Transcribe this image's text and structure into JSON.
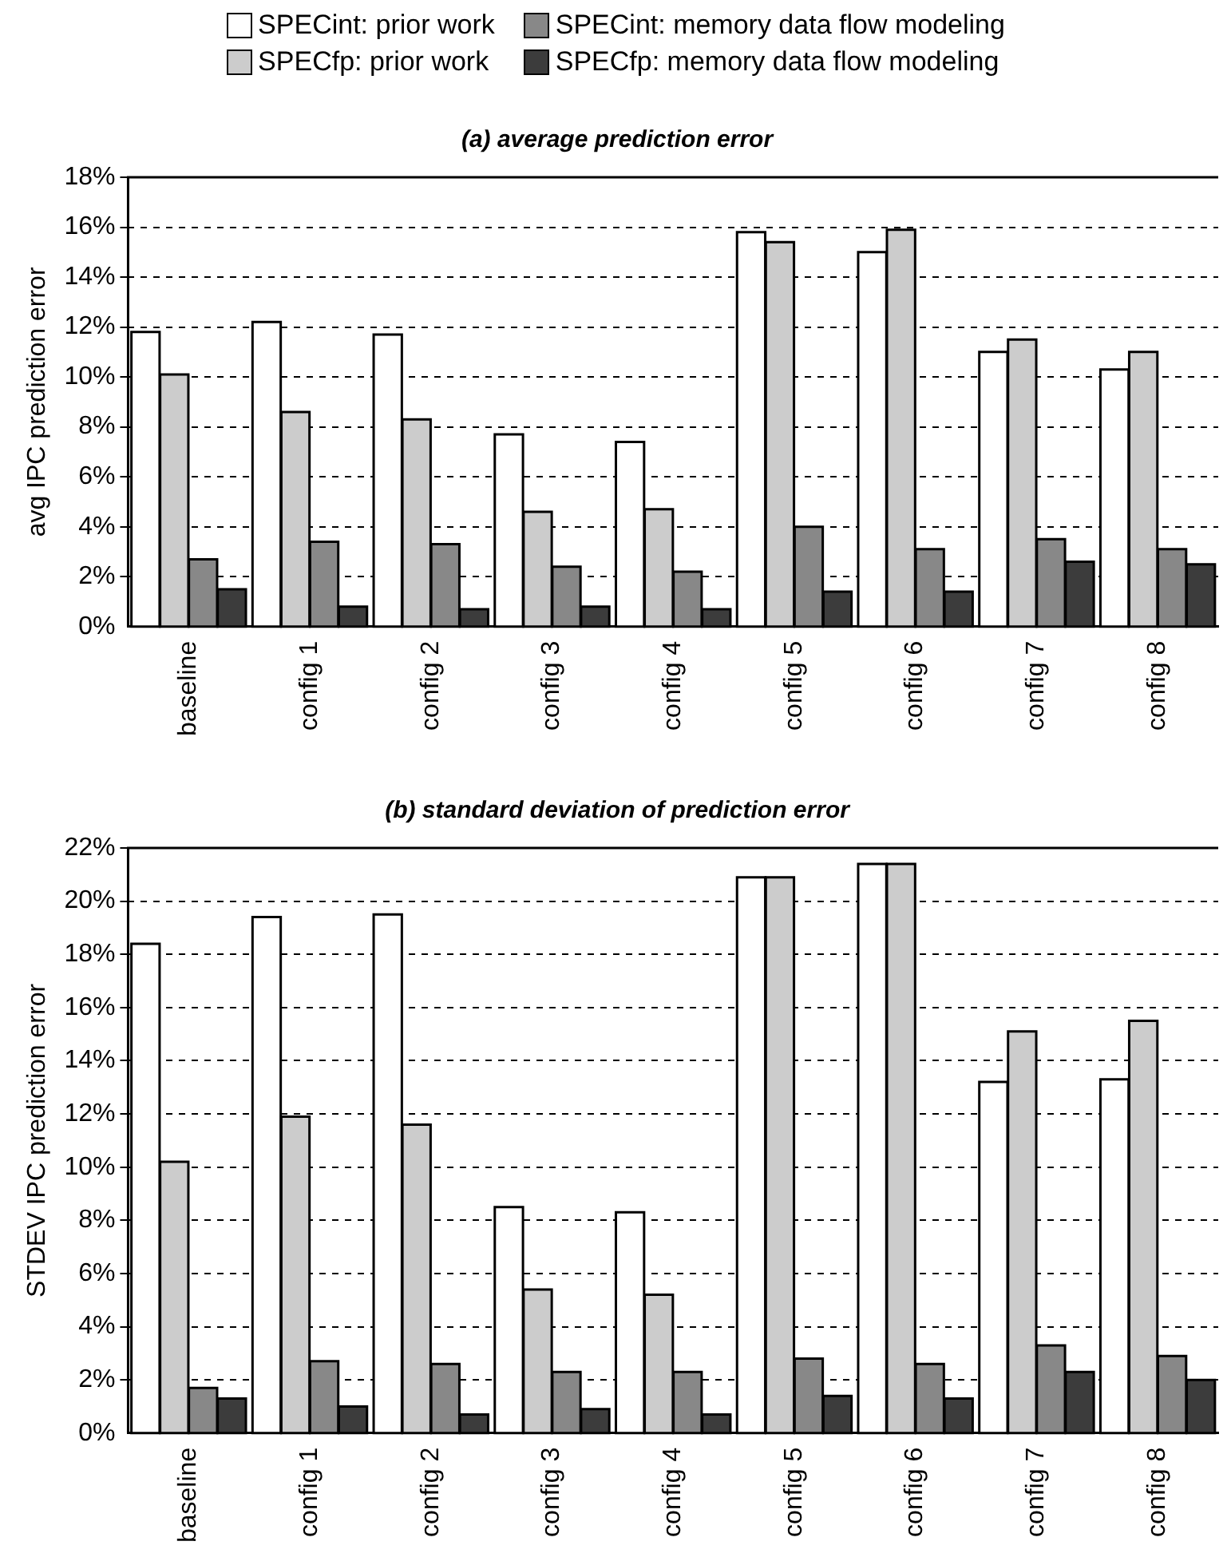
{
  "chart_data": [
    {
      "type": "bar",
      "title": "(a) average prediction error",
      "ylabel": "avg IPC prediction error",
      "categories": [
        "baseline",
        "config 1",
        "config 2",
        "config 3",
        "config 4",
        "config 5",
        "config 6",
        "config 7",
        "config 8"
      ],
      "series": [
        {
          "name": "SPECint: prior work",
          "color": "#ffffff",
          "values": [
            11.8,
            12.2,
            11.7,
            7.7,
            7.4,
            15.8,
            15.0,
            11.0,
            10.3
          ]
        },
        {
          "name": "SPECfp: prior work",
          "color": "#cccccc",
          "values": [
            10.1,
            8.6,
            8.3,
            4.6,
            4.7,
            15.4,
            15.9,
            11.5,
            11.0
          ]
        },
        {
          "name": "SPECint: memory data flow modeling",
          "color": "#888888",
          "values": [
            2.7,
            3.4,
            3.3,
            2.4,
            2.2,
            4.0,
            3.1,
            3.5,
            3.1
          ]
        },
        {
          "name": "SPECfp: memory data flow modeling",
          "color": "#3c3c3c",
          "values": [
            1.5,
            0.8,
            0.7,
            0.8,
            0.7,
            1.4,
            1.4,
            2.6,
            2.5
          ]
        }
      ],
      "ylim": [
        0,
        18
      ],
      "yticks": [
        {
          "value": 0,
          "label": "0%"
        },
        {
          "value": 2,
          "label": "2%"
        },
        {
          "value": 4,
          "label": "4%"
        },
        {
          "value": 6,
          "label": "6%"
        },
        {
          "value": 8,
          "label": "8%"
        },
        {
          "value": 10,
          "label": "10%"
        },
        {
          "value": 12,
          "label": "12%"
        },
        {
          "value": 14,
          "label": "14%"
        },
        {
          "value": 16,
          "label": "16%"
        },
        {
          "value": 18,
          "label": "18%"
        }
      ],
      "grid": "y",
      "legend": "top"
    },
    {
      "type": "bar",
      "title": "(b) standard deviation of prediction error",
      "ylabel": "STDEV IPC prediction error",
      "categories": [
        "baseline",
        "config 1",
        "config 2",
        "config 3",
        "config 4",
        "config 5",
        "config 6",
        "config 7",
        "config 8"
      ],
      "series": [
        {
          "color": "#ffffff",
          "values": [
            18.4,
            19.4,
            19.5,
            8.5,
            8.3,
            20.9,
            21.4,
            13.2,
            13.3
          ]
        },
        {
          "color": "#cccccc",
          "values": [
            10.2,
            11.9,
            11.6,
            5.4,
            5.2,
            20.9,
            21.4,
            15.1,
            15.5
          ]
        },
        {
          "color": "#888888",
          "values": [
            1.7,
            2.7,
            2.6,
            2.3,
            2.3,
            2.8,
            2.6,
            3.3,
            2.9
          ]
        },
        {
          "color": "#3c3c3c",
          "values": [
            1.3,
            1.0,
            0.7,
            0.9,
            0.7,
            1.4,
            1.3,
            2.3,
            2.0
          ]
        }
      ],
      "ylim": [
        0,
        22
      ],
      "yticks": [
        {
          "value": 0,
          "label": "0%"
        },
        {
          "value": 2,
          "label": "2%"
        },
        {
          "value": 4,
          "label": "4%"
        },
        {
          "value": 6,
          "label": "6%"
        },
        {
          "value": 8,
          "label": "8%"
        },
        {
          "value": 10,
          "label": "10%"
        },
        {
          "value": 12,
          "label": "12%"
        },
        {
          "value": 14,
          "label": "14%"
        },
        {
          "value": 16,
          "label": "16%"
        },
        {
          "value": 18,
          "label": "18%"
        },
        {
          "value": 20,
          "label": "20%"
        },
        {
          "value": 22,
          "label": "22%"
        }
      ],
      "grid": "y"
    }
  ]
}
